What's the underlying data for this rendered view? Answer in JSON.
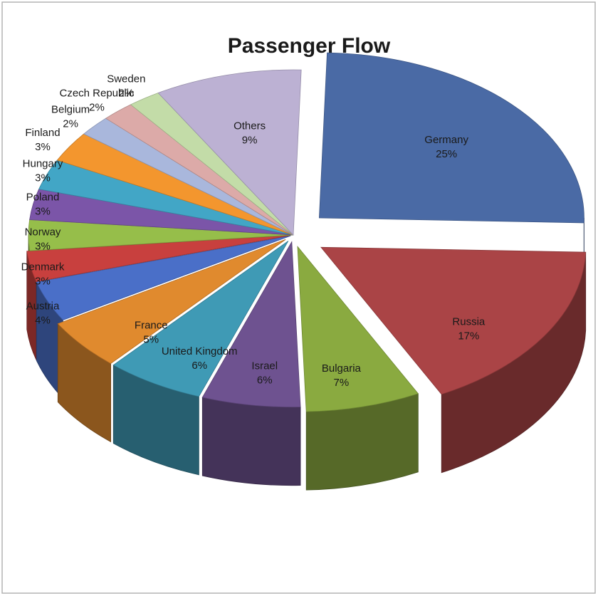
{
  "chart_data": {
    "type": "pie",
    "title": "Passenger Flow",
    "slices": [
      {
        "label": "Germany",
        "value": 25,
        "value_label": "25%",
        "color": "#4a6aa5"
      },
      {
        "label": "Russia",
        "value": 17,
        "value_label": "17%",
        "color": "#aa4446"
      },
      {
        "label": "Bulgaria",
        "value": 7,
        "value_label": "7%",
        "color": "#8aaa40"
      },
      {
        "label": "Israel",
        "value": 6,
        "value_label": "6%",
        "color": "#6e5290"
      },
      {
        "label": "United Kingdom",
        "value": 6,
        "value_label": "6%",
        "color": "#3f9ab5"
      },
      {
        "label": "France",
        "value": 5,
        "value_label": "5%",
        "color": "#e08a2e"
      },
      {
        "label": "Austria",
        "value": 4,
        "value_label": "4%",
        "color": "#4a6fc8"
      },
      {
        "label": "Denmark",
        "value": 3,
        "value_label": "3%",
        "color": "#c8403e"
      },
      {
        "label": "Norway",
        "value": 3,
        "value_label": "3%",
        "color": "#96be4a"
      },
      {
        "label": "Poland",
        "value": 3,
        "value_label": "3%",
        "color": "#7b55a8"
      },
      {
        "label": "Hungary",
        "value": 3,
        "value_label": "3%",
        "color": "#42a6c6"
      },
      {
        "label": "Finland",
        "value": 3,
        "value_label": "3%",
        "color": "#f3962e"
      },
      {
        "label": "Belgium",
        "value": 2,
        "value_label": "2%",
        "color": "#a9b7dc"
      },
      {
        "label": "Czech Republic",
        "value": 2,
        "value_label": "2%",
        "color": "#dcaaa8"
      },
      {
        "label": "Sweden",
        "value": 2,
        "value_label": "2%",
        "color": "#c3dca8"
      },
      {
        "label": "Others",
        "value": 9,
        "value_label": "9%",
        "color": "#bcb1d3"
      }
    ]
  }
}
